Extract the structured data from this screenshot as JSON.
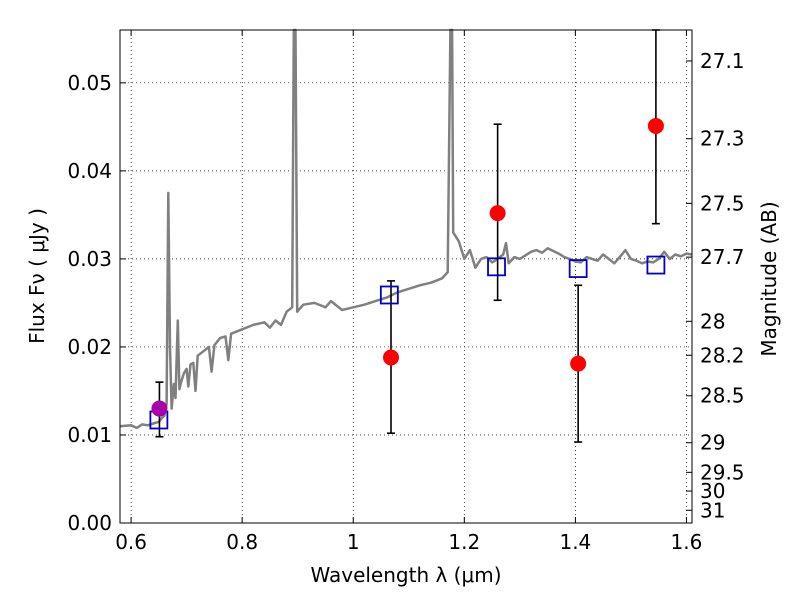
{
  "chart_data": {
    "type": "scatter",
    "xlabel": "Wavelength  λ (μm)",
    "ylabel": "Flux  Fν  ( μJy )",
    "y2label": "Magnitude (AB)",
    "xlim": [
      0.58,
      1.61
    ],
    "ylim": [
      0.0,
      0.056
    ],
    "grid": true,
    "x_ticks": [
      0.6,
      0.8,
      1.0,
      1.2,
      1.4,
      1.6
    ],
    "x_tick_labels": [
      "0.6",
      "0.8",
      "1",
      "1.2",
      "1.4",
      "1.6"
    ],
    "y_ticks": [
      0.0,
      0.01,
      0.02,
      0.03,
      0.04,
      0.05
    ],
    "y_tick_labels": [
      "0.00",
      "0.01",
      "0.02",
      "0.03",
      "0.04",
      "0.05"
    ],
    "mag_ticks": [
      "27.1",
      "27.3",
      "27.5",
      "27.7",
      "28",
      "28.2",
      "28.5",
      "29",
      "29.5",
      "30",
      "31"
    ],
    "colors": {
      "spectrum": "#808080",
      "observed": "#ff0000",
      "model": "#0000cc",
      "highlight": "#aa00aa",
      "errorbar": "#000000"
    },
    "series": [
      {
        "kind": "observed",
        "points": [
          {
            "x": 0.651,
            "y": 0.013,
            "yerr_low": 0.0098,
            "yerr_high": 0.016,
            "highlight": true
          },
          {
            "x": 1.068,
            "y": 0.0188,
            "yerr_low": 0.0102,
            "yerr_high": 0.0275
          },
          {
            "x": 1.26,
            "y": 0.0352,
            "yerr_low": 0.0253,
            "yerr_high": 0.0453
          },
          {
            "x": 1.405,
            "y": 0.0181,
            "yerr_low": 0.0092,
            "yerr_high": 0.027
          },
          {
            "x": 1.545,
            "y": 0.0451,
            "yerr_low": 0.034,
            "yerr_high": 0.056
          }
        ]
      },
      {
        "kind": "model",
        "points": [
          {
            "x": 0.65,
            "y": 0.0117
          },
          {
            "x": 1.065,
            "y": 0.0259
          },
          {
            "x": 1.258,
            "y": 0.0291
          },
          {
            "x": 1.405,
            "y": 0.0289
          },
          {
            "x": 1.545,
            "y": 0.0293
          }
        ]
      },
      {
        "kind": "spectrum",
        "points": [
          [
            0.58,
            0.011
          ],
          [
            0.6,
            0.0111
          ],
          [
            0.61,
            0.0108
          ],
          [
            0.62,
            0.0112
          ],
          [
            0.63,
            0.0111
          ],
          [
            0.64,
            0.0113
          ],
          [
            0.65,
            0.0115
          ],
          [
            0.655,
            0.0119
          ],
          [
            0.66,
            0.0122
          ],
          [
            0.664,
            0.0135
          ],
          [
            0.667,
            0.0375
          ],
          [
            0.67,
            0.02
          ],
          [
            0.673,
            0.013
          ],
          [
            0.677,
            0.0158
          ],
          [
            0.68,
            0.0142
          ],
          [
            0.684,
            0.023
          ],
          [
            0.687,
            0.0152
          ],
          [
            0.69,
            0.016
          ],
          [
            0.695,
            0.017
          ],
          [
            0.7,
            0.0175
          ],
          [
            0.703,
            0.0155
          ],
          [
            0.707,
            0.018
          ],
          [
            0.712,
            0.0182
          ],
          [
            0.716,
            0.015
          ],
          [
            0.72,
            0.019
          ],
          [
            0.73,
            0.0195
          ],
          [
            0.74,
            0.02
          ],
          [
            0.745,
            0.0172
          ],
          [
            0.75,
            0.0202
          ],
          [
            0.76,
            0.021
          ],
          [
            0.77,
            0.0212
          ],
          [
            0.775,
            0.0185
          ],
          [
            0.78,
            0.0215
          ],
          [
            0.8,
            0.022
          ],
          [
            0.82,
            0.0225
          ],
          [
            0.84,
            0.0228
          ],
          [
            0.85,
            0.0222
          ],
          [
            0.86,
            0.023
          ],
          [
            0.87,
            0.0225
          ],
          [
            0.88,
            0.024
          ],
          [
            0.89,
            0.0245
          ],
          [
            0.893,
            0.056
          ],
          [
            0.896,
            0.056
          ],
          [
            0.899,
            0.024
          ],
          [
            0.91,
            0.0248
          ],
          [
            0.93,
            0.025
          ],
          [
            0.95,
            0.0245
          ],
          [
            0.96,
            0.0252
          ],
          [
            0.98,
            0.0242
          ],
          [
            1.0,
            0.0245
          ],
          [
            1.02,
            0.0248
          ],
          [
            1.04,
            0.0252
          ],
          [
            1.06,
            0.0256
          ],
          [
            1.08,
            0.0262
          ],
          [
            1.1,
            0.0266
          ],
          [
            1.12,
            0.027
          ],
          [
            1.14,
            0.0273
          ],
          [
            1.16,
            0.0278
          ],
          [
            1.17,
            0.0285
          ],
          [
            1.175,
            0.056
          ],
          [
            1.178,
            0.056
          ],
          [
            1.18,
            0.033
          ],
          [
            1.19,
            0.032
          ],
          [
            1.2,
            0.03
          ],
          [
            1.21,
            0.031
          ],
          [
            1.22,
            0.029
          ],
          [
            1.23,
            0.03
          ],
          [
            1.24,
            0.0302
          ],
          [
            1.25,
            0.0296
          ],
          [
            1.26,
            0.03
          ],
          [
            1.27,
            0.0305
          ],
          [
            1.275,
            0.0318
          ],
          [
            1.28,
            0.0295
          ],
          [
            1.29,
            0.0302
          ],
          [
            1.3,
            0.03
          ],
          [
            1.31,
            0.0304
          ],
          [
            1.32,
            0.0308
          ],
          [
            1.33,
            0.031
          ],
          [
            1.34,
            0.0307
          ],
          [
            1.35,
            0.0312
          ],
          [
            1.36,
            0.0309
          ],
          [
            1.37,
            0.0306
          ],
          [
            1.38,
            0.0302
          ],
          [
            1.39,
            0.03
          ],
          [
            1.4,
            0.0297
          ],
          [
            1.41,
            0.0296
          ],
          [
            1.42,
            0.0302
          ],
          [
            1.43,
            0.03
          ],
          [
            1.44,
            0.0298
          ],
          [
            1.45,
            0.0305
          ],
          [
            1.46,
            0.03
          ],
          [
            1.47,
            0.0295
          ],
          [
            1.48,
            0.0302
          ],
          [
            1.49,
            0.031
          ],
          [
            1.5,
            0.03
          ],
          [
            1.51,
            0.0298
          ],
          [
            1.52,
            0.0295
          ],
          [
            1.53,
            0.0297
          ],
          [
            1.54,
            0.0296
          ],
          [
            1.55,
            0.03
          ],
          [
            1.56,
            0.0308
          ],
          [
            1.57,
            0.03
          ],
          [
            1.58,
            0.0305
          ],
          [
            1.59,
            0.0303
          ],
          [
            1.6,
            0.0306
          ],
          [
            1.61,
            0.0305
          ]
        ]
      }
    ]
  }
}
